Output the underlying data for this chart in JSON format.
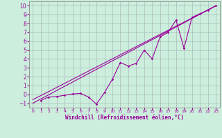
{
  "title": "",
  "xlabel": "Windchill (Refroidissement éolien,°C)",
  "ylabel": "",
  "bg_color": "#cceedd",
  "grid_color": "#aabbbb",
  "line_color": "#990099",
  "spine_color": "#888888",
  "xlim": [
    -0.5,
    23.5
  ],
  "ylim": [
    -1.5,
    10.5
  ],
  "xticks": [
    0,
    1,
    2,
    3,
    4,
    5,
    6,
    7,
    8,
    9,
    10,
    11,
    12,
    13,
    14,
    15,
    16,
    17,
    18,
    19,
    20,
    21,
    22,
    23
  ],
  "yticks": [
    -1,
    0,
    1,
    2,
    3,
    4,
    5,
    6,
    7,
    8,
    9,
    10
  ],
  "scatter_x": [
    1,
    2,
    3,
    4,
    5,
    6,
    7,
    8,
    9,
    10,
    11,
    12,
    13,
    14,
    15,
    16,
    17,
    18,
    19,
    20,
    21,
    22,
    23
  ],
  "scatter_y": [
    -0.7,
    -0.3,
    -0.25,
    -0.1,
    0.05,
    0.1,
    -0.3,
    -1.1,
    0.2,
    1.7,
    3.6,
    3.2,
    3.5,
    5.0,
    4.0,
    6.5,
    7.0,
    8.4,
    5.2,
    8.7,
    9.1,
    9.5,
    10.0
  ],
  "line1_x": [
    0,
    23
  ],
  "line1_y": [
    -1.0,
    10.0
  ],
  "line2_x": [
    0,
    23
  ],
  "line2_y": [
    -0.6,
    10.0
  ]
}
